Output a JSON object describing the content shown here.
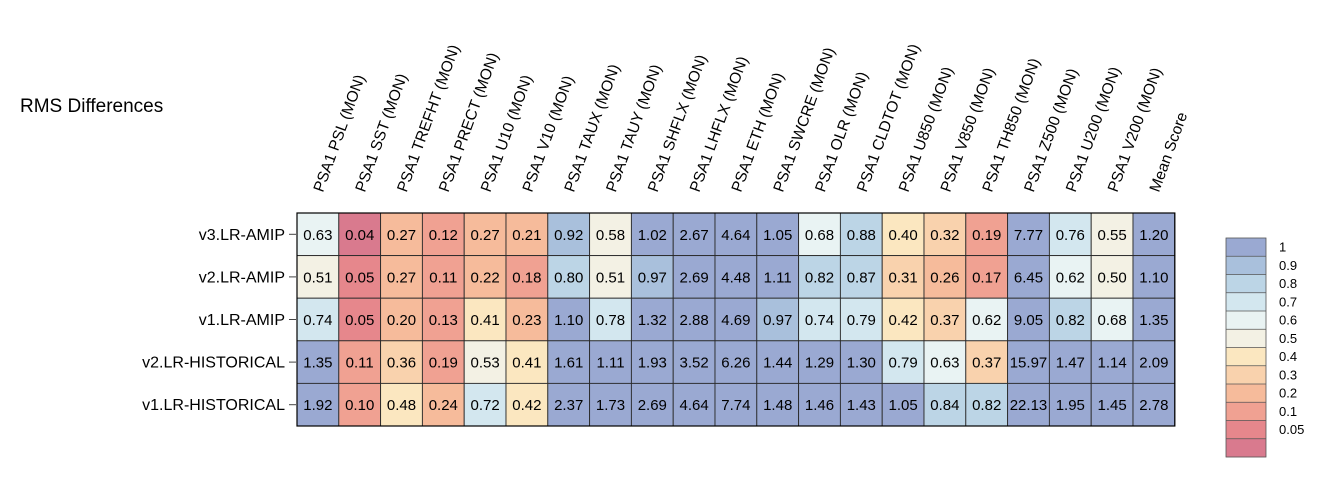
{
  "chart_data": {
    "type": "heatmap",
    "title": "RMS Differences",
    "columns": [
      "PSA1 PSL (MON)",
      "PSA1 SST (MON)",
      "PSA1 TREFHT (MON)",
      "PSA1 PRECT (MON)",
      "PSA1 U10 (MON)",
      "PSA1 V10 (MON)",
      "PSA1 TAUX (MON)",
      "PSA1 TAUY (MON)",
      "PSA1 SHFLX (MON)",
      "PSA1 LHFLX (MON)",
      "PSA1 ETH (MON)",
      "PSA1 SWCRE (MON)",
      "PSA1 OLR (MON)",
      "PSA1 CLDTOT (MON)",
      "PSA1 U850 (MON)",
      "PSA1 V850 (MON)",
      "PSA1 TH850 (MON)",
      "PSA1 Z500 (MON)",
      "PSA1 U200 (MON)",
      "PSA1 V200 (MON)",
      "Mean Score"
    ],
    "rows": [
      "v3.LR-AMIP",
      "v2.LR-AMIP",
      "v1.LR-AMIP",
      "v2.LR-HISTORICAL",
      "v1.LR-HISTORICAL"
    ],
    "values": [
      [
        "0.63",
        "0.04",
        "0.27",
        "0.12",
        "0.27",
        "0.21",
        "0.92",
        "0.58",
        "1.02",
        "2.67",
        "4.64",
        "1.05",
        "0.68",
        "0.88",
        "0.40",
        "0.32",
        "0.19",
        "7.77",
        "0.76",
        "0.55",
        "1.20"
      ],
      [
        "0.51",
        "0.05",
        "0.27",
        "0.11",
        "0.22",
        "0.18",
        "0.80",
        "0.51",
        "0.97",
        "2.69",
        "4.48",
        "1.11",
        "0.82",
        "0.87",
        "0.31",
        "0.26",
        "0.17",
        "6.45",
        "0.62",
        "0.50",
        "1.10"
      ],
      [
        "0.74",
        "0.05",
        "0.20",
        "0.13",
        "0.41",
        "0.23",
        "1.10",
        "0.78",
        "1.32",
        "2.88",
        "4.69",
        "0.97",
        "0.74",
        "0.79",
        "0.42",
        "0.37",
        "0.62",
        "9.05",
        "0.82",
        "0.68",
        "1.35"
      ],
      [
        "1.35",
        "0.11",
        "0.36",
        "0.19",
        "0.53",
        "0.41",
        "1.61",
        "1.11",
        "1.93",
        "3.52",
        "6.26",
        "1.44",
        "1.29",
        "1.30",
        "0.79",
        "0.63",
        "0.37",
        "15.97",
        "1.47",
        "1.14",
        "2.09"
      ],
      [
        "1.92",
        "0.10",
        "0.48",
        "0.24",
        "0.72",
        "0.42",
        "2.37",
        "1.73",
        "2.69",
        "4.64",
        "7.74",
        "1.48",
        "1.46",
        "1.43",
        "1.05",
        "0.84",
        "0.82",
        "22.13",
        "1.95",
        "1.45",
        "2.78"
      ]
    ],
    "legend": {
      "ticks": [
        "1",
        "0.9",
        "0.8",
        "0.7",
        "0.6",
        "0.5",
        "0.4",
        "0.3",
        "0.2",
        "0.1",
        "0.05"
      ],
      "bins": [
        {
          "min": 1.0,
          "color": "#9aa9d2"
        },
        {
          "min": 0.9,
          "color": "#a9c0dc"
        },
        {
          "min": 0.8,
          "color": "#bcd5e6"
        },
        {
          "min": 0.7,
          "color": "#d3e7ef"
        },
        {
          "min": 0.6,
          "color": "#e9f3f3"
        },
        {
          "min": 0.5,
          "color": "#f3f1e4"
        },
        {
          "min": 0.4,
          "color": "#fbe7c0"
        },
        {
          "min": 0.3,
          "color": "#f9d2ad"
        },
        {
          "min": 0.2,
          "color": "#f6bb9b"
        },
        {
          "min": 0.1,
          "color": "#f0a192"
        },
        {
          "min": 0.05,
          "color": "#e6878c"
        },
        {
          "min": 0.0,
          "color": "#d97a8e"
        }
      ]
    },
    "grid": true,
    "legend_position": "right"
  }
}
